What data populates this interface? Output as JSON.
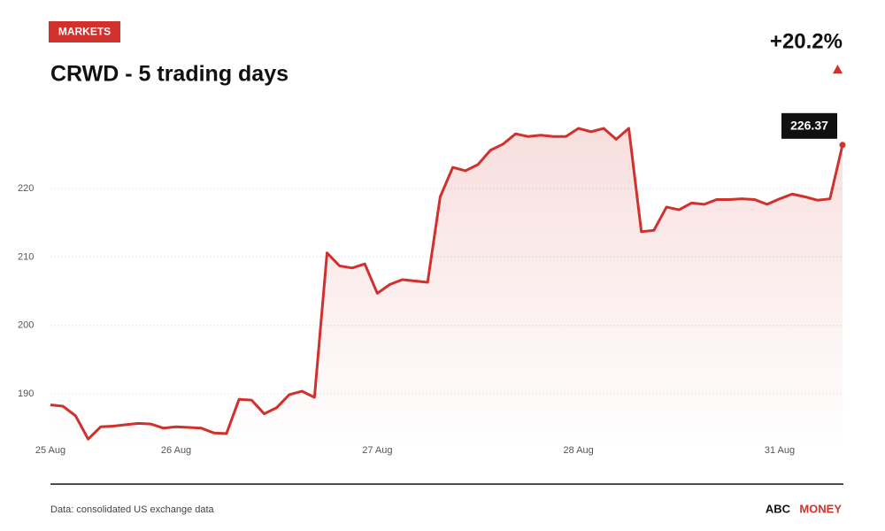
{
  "chart_data": {
    "type": "line",
    "tag": "MARKETS",
    "title": "CRWD - 5 trading days",
    "change": "+20.2%",
    "source": "Data: consolidated US exchange data",
    "brand": [
      "ABC",
      "MONEY"
    ],
    "color": "#d0312d",
    "x": [
      0,
      1,
      2,
      3,
      4,
      5,
      6,
      7,
      8,
      9,
      10,
      11,
      12,
      13,
      14,
      15,
      16,
      17,
      18,
      19,
      20,
      21,
      22,
      23,
      24,
      25,
      26,
      27,
      28,
      29,
      30,
      31,
      32,
      33,
      34,
      35,
      36,
      37,
      38,
      39,
      40,
      41,
      42,
      43,
      44,
      45,
      46,
      47,
      48,
      49,
      50,
      51,
      52,
      53,
      54,
      55,
      56,
      57,
      58,
      59,
      60,
      61,
      62,
      63
    ],
    "values": [
      188.4,
      188.2,
      186.8,
      183.4,
      185.2,
      185.3,
      185.5,
      185.7,
      185.6,
      185.0,
      185.2,
      185.1,
      185.0,
      184.3,
      184.2,
      189.2,
      189.1,
      187.1,
      188.0,
      189.9,
      190.4,
      189.5,
      210.6,
      208.7,
      208.4,
      209.0,
      204.7,
      206.0,
      206.7,
      206.5,
      206.3,
      218.8,
      223.1,
      222.6,
      223.5,
      225.6,
      226.5,
      228.0,
      227.6,
      227.8,
      227.6,
      227.6,
      228.8,
      228.3,
      228.8,
      227.2,
      228.8,
      213.7,
      213.9,
      217.3,
      216.9,
      217.9,
      217.7,
      218.4,
      218.4,
      218.5,
      218.4,
      217.7,
      218.5,
      219.2,
      218.8,
      218.3,
      218.5,
      226.37
    ],
    "xlim": [
      0,
      63
    ],
    "xticks": [
      {
        "value": 0,
        "label": "25 Aug"
      },
      {
        "value": 10,
        "label": "26 Aug"
      },
      {
        "value": 26,
        "label": "27 Aug"
      },
      {
        "value": 42,
        "label": "28 Aug"
      },
      {
        "value": 58,
        "label": "31 Aug"
      }
    ],
    "ylim": [
      182,
      231
    ],
    "yticks": [
      190,
      200,
      210,
      220
    ],
    "grid": true
  }
}
